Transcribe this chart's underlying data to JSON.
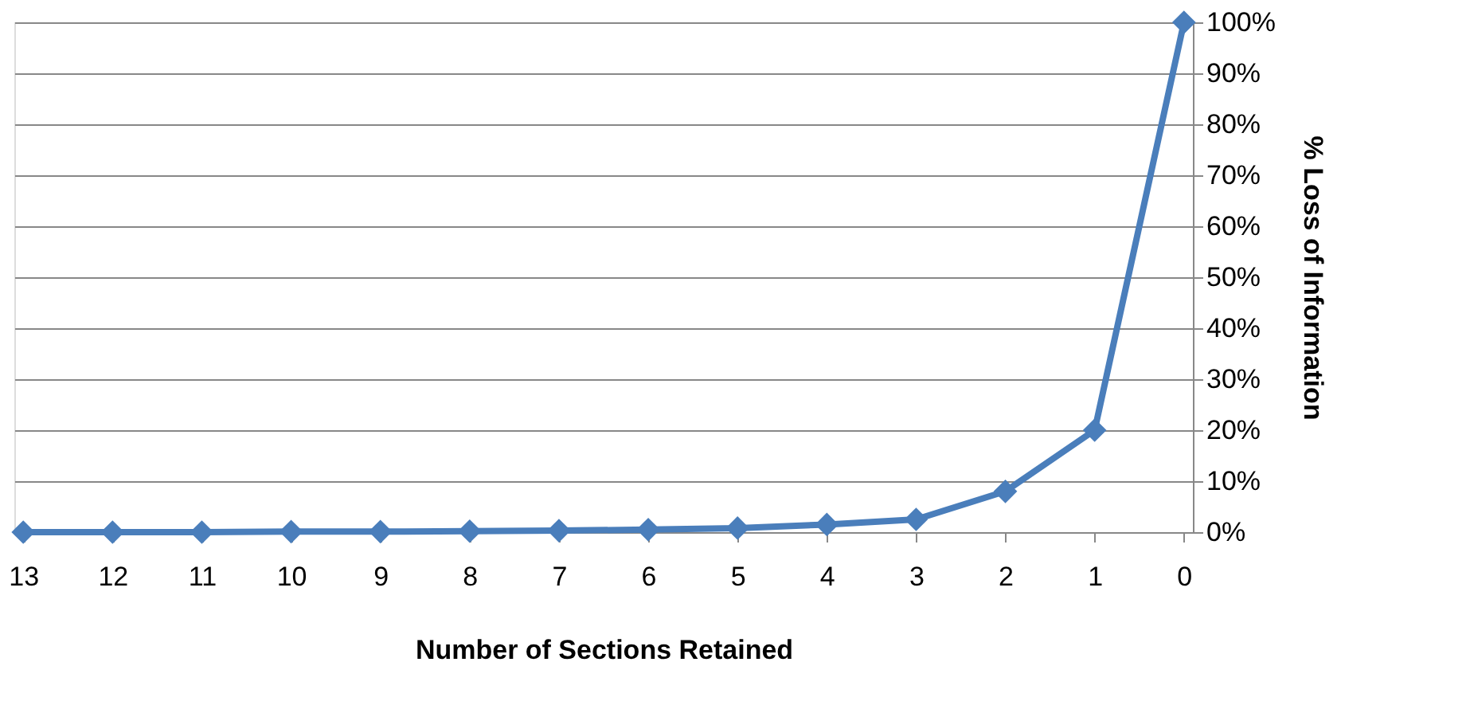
{
  "chart_data": {
    "type": "line",
    "xlabel": "Number of Sections Retained",
    "ylabel": "% Loss of Information",
    "categories": [
      "13",
      "12",
      "11",
      "10",
      "9",
      "8",
      "7",
      "6",
      "5",
      "4",
      "3",
      "2",
      "1",
      "0"
    ],
    "series": [
      {
        "color": "#4a7ebb",
        "values": [
          0,
          0,
          0,
          0.1,
          0.1,
          0.2,
          0.3,
          0.5,
          0.8,
          1.5,
          2.5,
          8,
          20,
          100
        ]
      }
    ],
    "ylim": [
      0,
      100
    ],
    "yticks": [
      {
        "value": 0,
        "label": "0%"
      },
      {
        "value": 10,
        "label": "10%"
      },
      {
        "value": 20,
        "label": "20%"
      },
      {
        "value": 30,
        "label": "30%"
      },
      {
        "value": 40,
        "label": "40%"
      },
      {
        "value": 50,
        "label": "50%"
      },
      {
        "value": 60,
        "label": "60%"
      },
      {
        "value": 70,
        "label": "70%"
      },
      {
        "value": 80,
        "label": "80%"
      },
      {
        "value": 90,
        "label": "90%"
      },
      {
        "value": 100,
        "label": "100%"
      }
    ],
    "grid": "y",
    "marker": "diamond",
    "line_style": "solid"
  }
}
